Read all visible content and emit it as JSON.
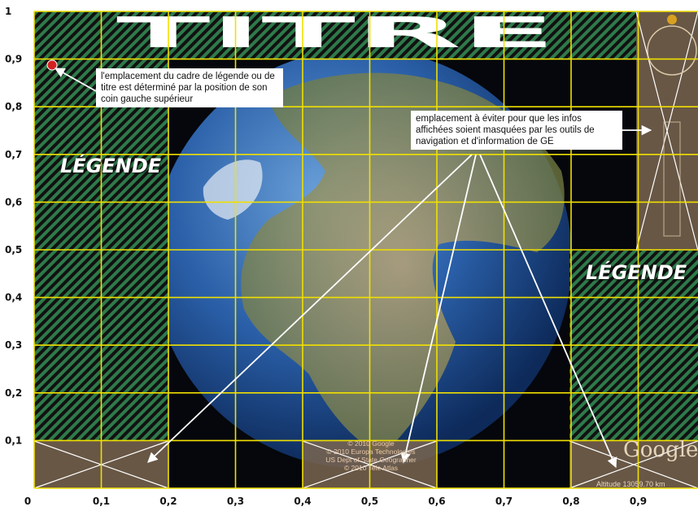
{
  "title_text": "TITRE",
  "legend_label": "LÉGENDE",
  "callouts": {
    "corner": "l'emplacement du cadre de légende ou de titre est déterminé par la position de son coin gauche supérieur",
    "avoid": "emplacement à éviter pour que les infos affichées soient masquées par les outils de navigation et d'information de GE"
  },
  "credits": {
    "line1": "© 2010 Google",
    "line2": "© 2010 Europa Technologies",
    "line3": "US Dept of State Geographer",
    "line4": "© 2010 Tele Atlas"
  },
  "google_logo": "Google",
  "altitude": "Altitude 13059.70 km",
  "x_axis_labels": [
    "0",
    "0,1",
    "0,2",
    "0,3",
    "0,4",
    "0,5",
    "0,6",
    "0,7",
    "0,8",
    "0,9"
  ],
  "y_axis_labels": [
    "1",
    "0,9",
    "0,8",
    "0,7",
    "0,6",
    "0,5",
    "0,4",
    "0,3",
    "0,2",
    "0,1"
  ],
  "colors": {
    "grid": "#f0e000",
    "hatch_green": "#2e7a4a",
    "nav_zone": "#7a6550",
    "space": "#05070c",
    "ocean": "#2a5fa8"
  }
}
